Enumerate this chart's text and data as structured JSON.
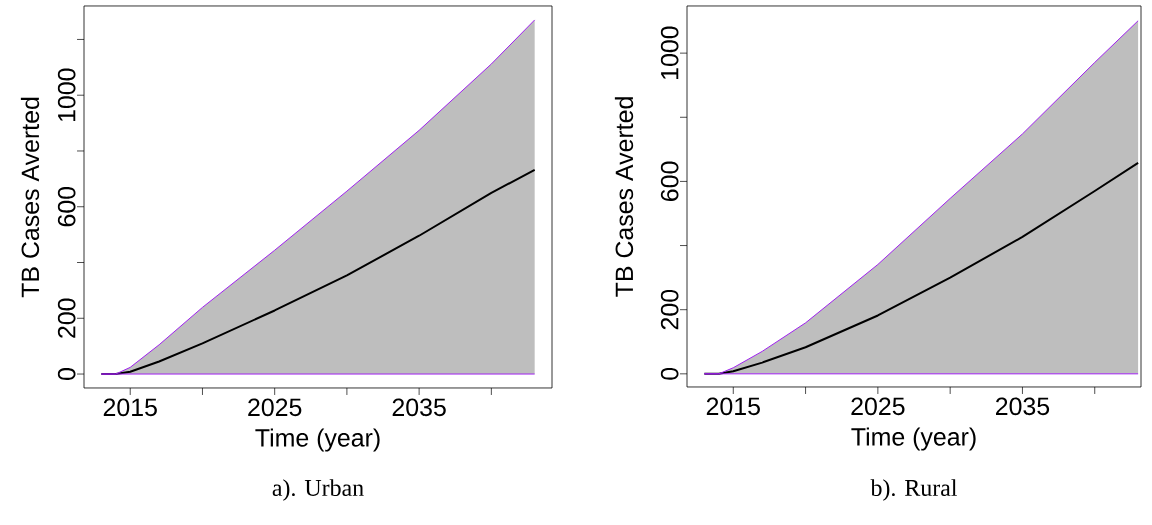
{
  "chart_data": [
    {
      "type": "line",
      "xlabel": "Time (year)",
      "ylabel": "TB Cases Averted",
      "annotations": [
        "a). Urban"
      ],
      "x": [
        2013,
        2014,
        2015,
        2017,
        2020,
        2025,
        2030,
        2035,
        2040,
        2043
      ],
      "series": [
        {
          "color": "#000000",
          "values": [
            0,
            0,
            8,
            45,
            110,
            228,
            354,
            496,
            650,
            732
          ],
          "lower": [
            0,
            0,
            0,
            0,
            0,
            0,
            0,
            0,
            0,
            0
          ],
          "upper": [
            0,
            0,
            24,
            105,
            239,
            444,
            656,
            874,
            1112,
            1270
          ]
        }
      ],
      "xlim": [
        2011.8,
        2044.2
      ],
      "ylim": [
        -50,
        1320
      ],
      "xticks": [
        2015,
        {
          "value": 2020,
          "label": null
        },
        2025,
        {
          "value": 2030,
          "label": null
        },
        2035,
        {
          "value": 2040,
          "label": null
        }
      ],
      "yticks": [
        0,
        200,
        {
          "value": 400,
          "label": null
        },
        600,
        {
          "value": 800,
          "label": null
        },
        1000,
        {
          "value": 1200,
          "label": null
        }
      ]
    },
    {
      "type": "line",
      "xlabel": "Time (year)",
      "ylabel": "TB Cases Averted",
      "annotations": [
        "b). Rural"
      ],
      "x": [
        2013,
        2014,
        2015,
        2017,
        2020,
        2025,
        2030,
        2035,
        2040,
        2043
      ],
      "series": [
        {
          "color": "#000000",
          "values": [
            0,
            0,
            8,
            35,
            83,
            182,
            300,
            427,
            570,
            658
          ],
          "lower": [
            0,
            0,
            0,
            0,
            0,
            0,
            0,
            0,
            0,
            0
          ],
          "upper": [
            0,
            0,
            19,
            70,
            159,
            341,
            547,
            748,
            971,
            1101
          ]
        }
      ],
      "xlim": [
        2011.8,
        2043.2
      ],
      "ylim": [
        -41,
        1147
      ],
      "xticks": [
        2015,
        {
          "value": 2020,
          "label": null
        },
        2025,
        {
          "value": 2030,
          "label": null
        },
        2035,
        {
          "value": 2040,
          "label": null
        }
      ],
      "yticks": [
        0,
        200,
        {
          "value": 400,
          "label": null
        },
        600,
        {
          "value": 800,
          "label": null
        },
        1000
      ]
    }
  ]
}
